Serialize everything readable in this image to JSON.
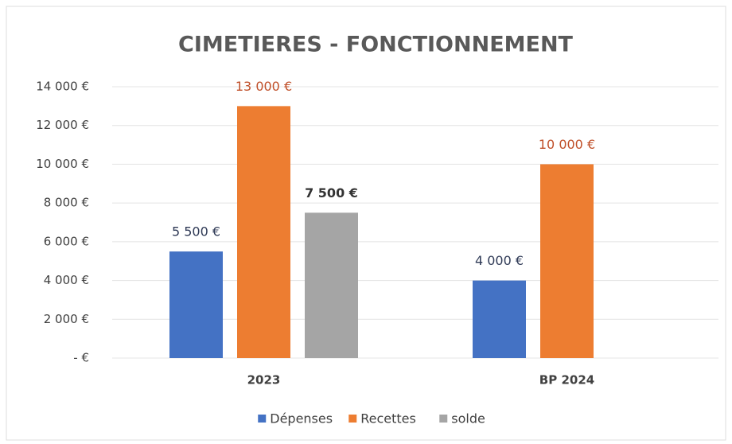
{
  "chart_data": {
    "type": "bar",
    "title": "CIMETIERES - FONCTIONNEMENT",
    "categories": [
      "2023",
      "BP 2024"
    ],
    "series": [
      {
        "name": "Dépenses",
        "color": "#4472c4",
        "values": [
          5500,
          4000
        ],
        "value_labels": [
          "5 500 €",
          "4 000 €"
        ]
      },
      {
        "name": "Recettes",
        "color": "#ed7d31",
        "values": [
          13000,
          10000
        ],
        "value_labels": [
          "13 000 €",
          "10 000 €"
        ]
      },
      {
        "name": "solde",
        "color": "#a5a5a5",
        "values": [
          7500,
          null
        ],
        "value_labels": [
          "7 500 €",
          null
        ]
      }
    ],
    "ylim": [
      0,
      14000
    ],
    "yticks": [
      {
        "value": 0,
        "label": "-   €"
      },
      {
        "value": 2000,
        "label": "2 000 €"
      },
      {
        "value": 4000,
        "label": "4 000 €"
      },
      {
        "value": 6000,
        "label": "6 000 €"
      },
      {
        "value": 8000,
        "label": "8 000 €"
      },
      {
        "value": 10000,
        "label": "10 000 €"
      },
      {
        "value": 12000,
        "label": "12 000 €"
      },
      {
        "value": 14000,
        "label": "14 000 €"
      }
    ],
    "grid": true,
    "legend": "bottom"
  }
}
